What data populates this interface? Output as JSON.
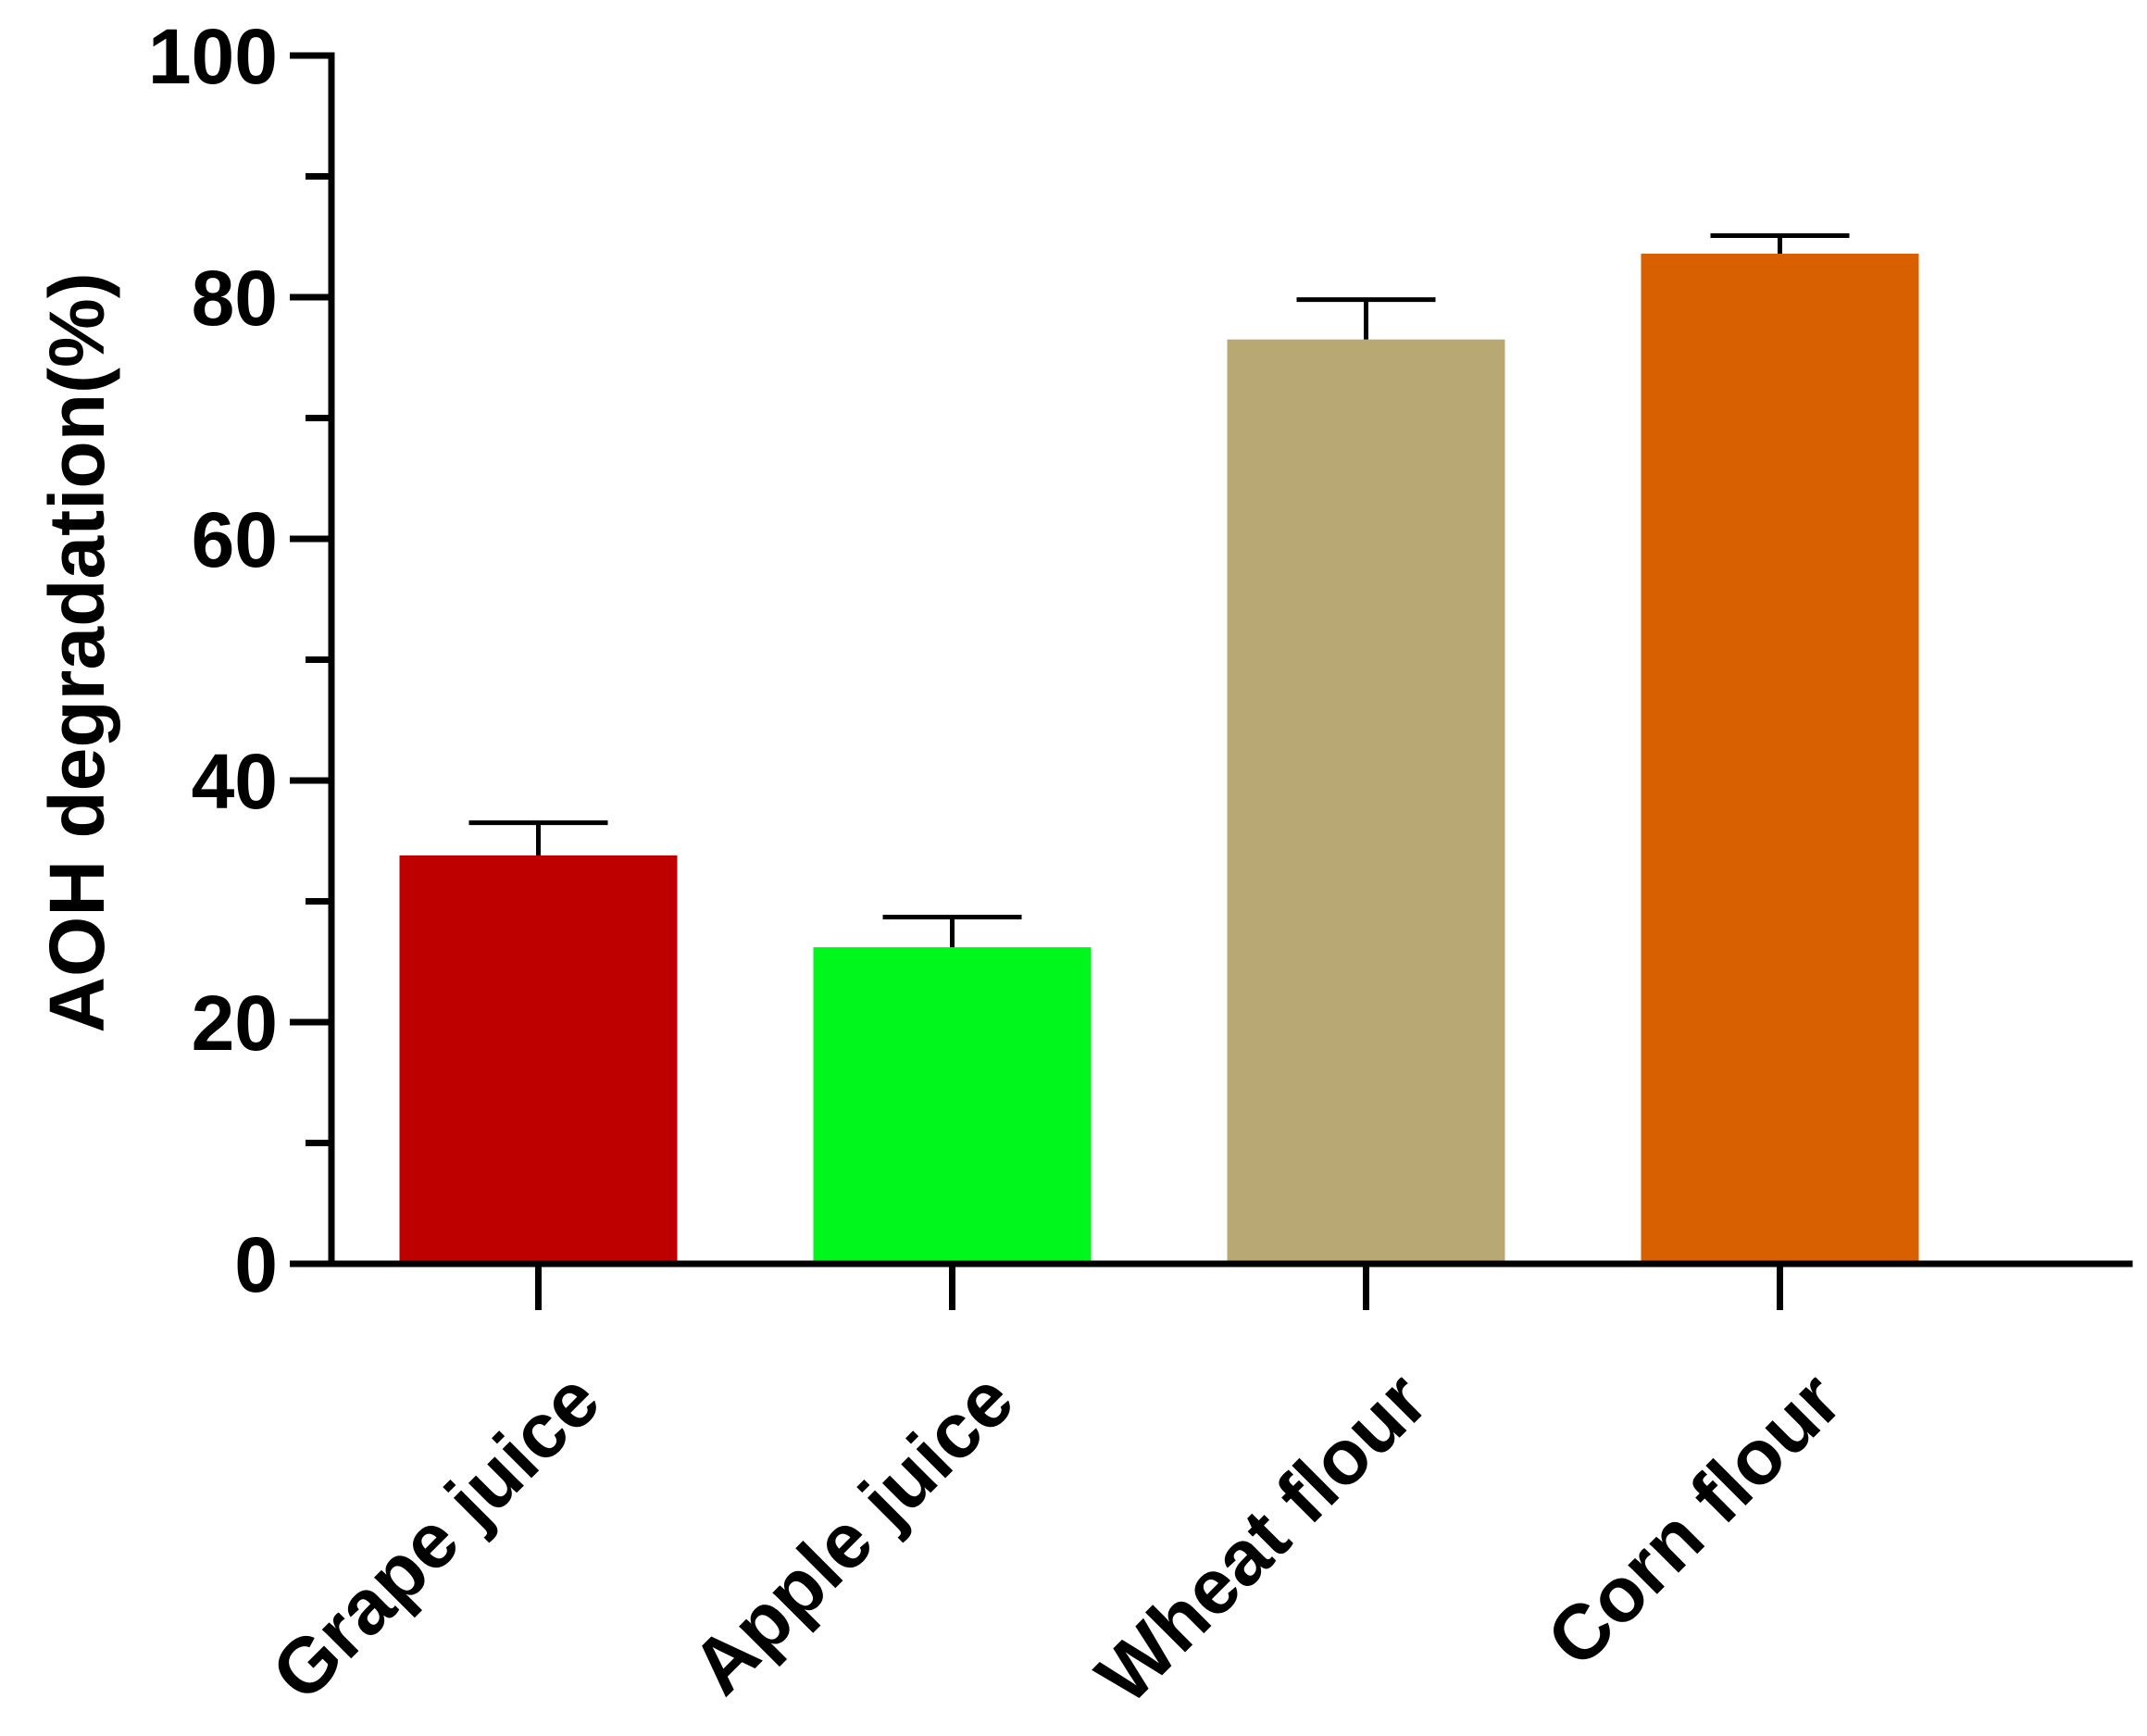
{
  "chart_data": {
    "type": "bar",
    "title": "",
    "xlabel": "",
    "ylabel": "AOH degradation(%)",
    "ylim": [
      0,
      100
    ],
    "yticks": [
      0,
      20,
      40,
      60,
      80,
      100
    ],
    "minor_ytick_step": 10,
    "grid": false,
    "categories": [
      "Grape juice",
      "Apple juice",
      "Wheat flour",
      "Corn flour"
    ],
    "values": [
      33.8,
      26.2,
      76.5,
      83.6
    ],
    "errors": [
      2.7,
      2.5,
      3.3,
      1.5
    ],
    "colors": [
      "#bf0000",
      "#00f71c",
      "#b8a873",
      "#d96000"
    ]
  }
}
